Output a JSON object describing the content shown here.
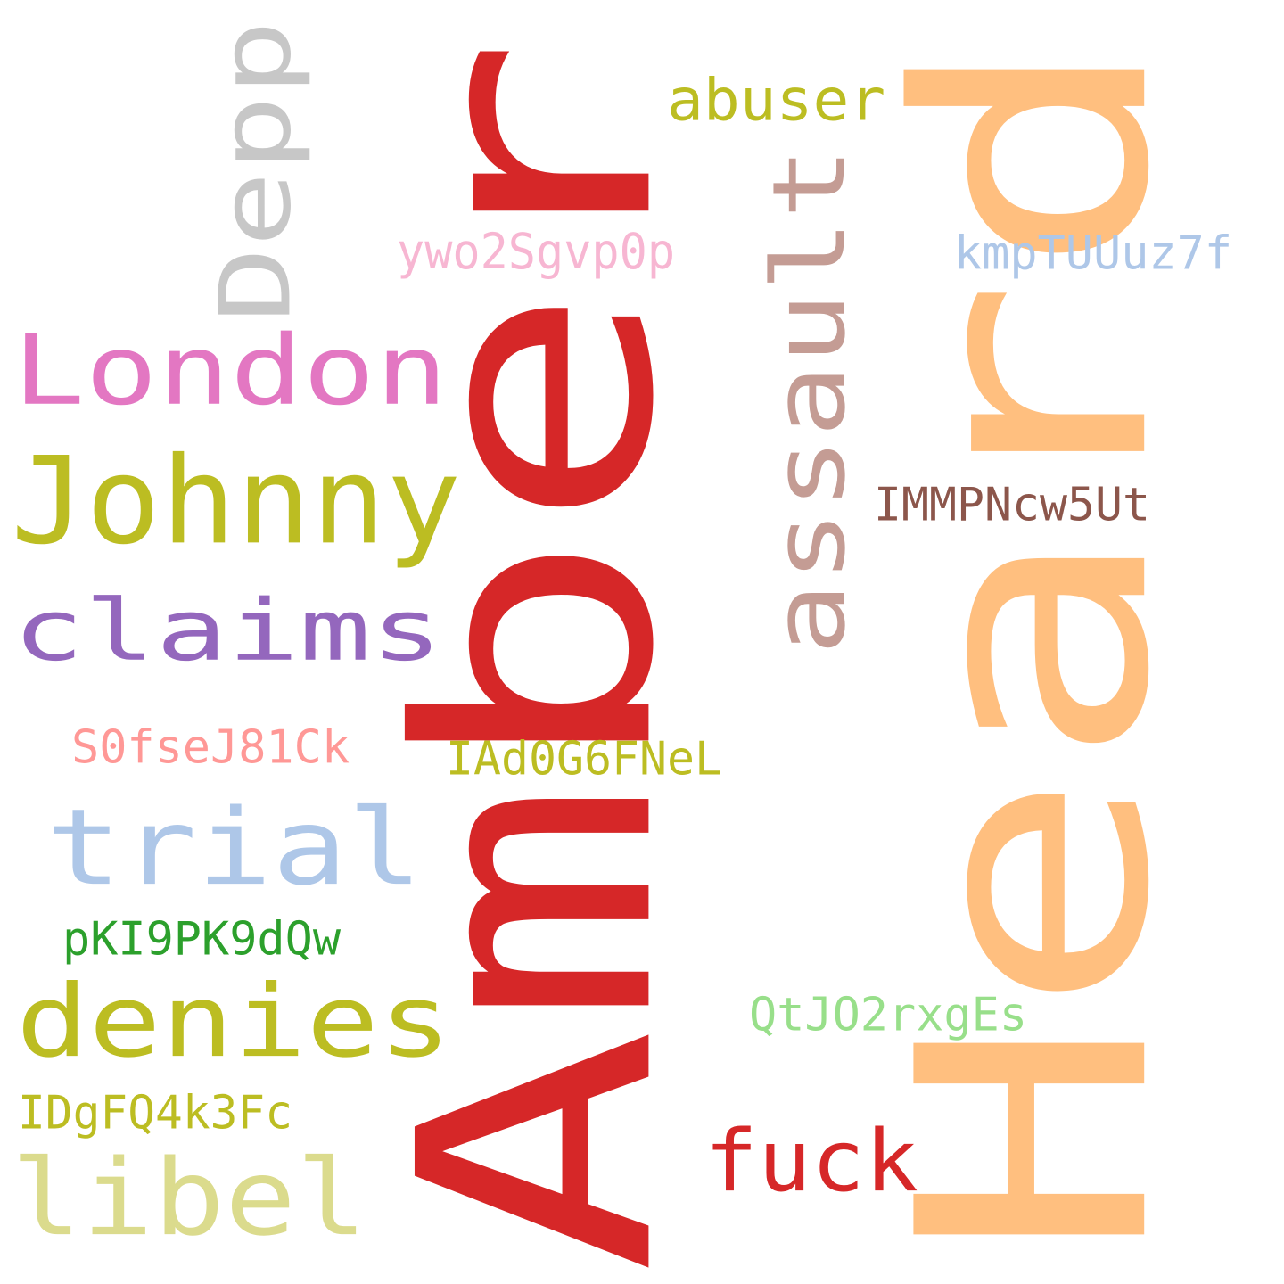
{
  "words": [
    {
      "id": "amber",
      "text": "Amber",
      "color": "#d62728",
      "orientation": "vertical"
    },
    {
      "id": "heard",
      "text": "Heard",
      "color": "#ffbf7f",
      "orientation": "vertical"
    },
    {
      "id": "depp",
      "text": "Depp",
      "color": "#c7c7c7",
      "orientation": "vertical"
    },
    {
      "id": "assault",
      "text": "assault",
      "color": "#c49c94",
      "orientation": "vertical"
    },
    {
      "id": "london",
      "text": "London",
      "color": "#e377c2",
      "orientation": "horizontal"
    },
    {
      "id": "johnny",
      "text": "Johnny",
      "color": "#bcbd22",
      "orientation": "horizontal"
    },
    {
      "id": "claims",
      "text": "claims",
      "color": "#9467bd",
      "orientation": "horizontal"
    },
    {
      "id": "trial",
      "text": "trial",
      "color": "#aec7e8",
      "orientation": "horizontal"
    },
    {
      "id": "denies",
      "text": "denies",
      "color": "#bcbd22",
      "orientation": "horizontal"
    },
    {
      "id": "libel",
      "text": "libel",
      "color": "#dbdb8d",
      "orientation": "horizontal"
    },
    {
      "id": "fuck",
      "text": "fuck",
      "color": "#d62728",
      "orientation": "horizontal"
    },
    {
      "id": "abuser",
      "text": "abuser",
      "color": "#bcbd22",
      "orientation": "horizontal"
    },
    {
      "id": "ywo2sgvp0p",
      "text": "ywo2Sgvp0p",
      "color": "#f7b6d2",
      "orientation": "horizontal"
    },
    {
      "id": "kmptuuuz7f",
      "text": "kmpTUUuz7f",
      "color": "#aec7e8",
      "orientation": "horizontal"
    },
    {
      "id": "immpncw5ut",
      "text": "IMMPNcw5Ut",
      "color": "#8c564b",
      "orientation": "horizontal"
    },
    {
      "id": "s0fsej81ck",
      "text": "S0fseJ81Ck",
      "color": "#ff9896",
      "orientation": "horizontal"
    },
    {
      "id": "iad0g6fnel",
      "text": "IAd0G6FNeL",
      "color": "#bcbd22",
      "orientation": "horizontal"
    },
    {
      "id": "pki9pk9dqw",
      "text": "pKI9PK9dQw",
      "color": "#2ca02c",
      "orientation": "horizontal"
    },
    {
      "id": "qtjo2rxges",
      "text": "QtJO2rxgEs",
      "color": "#98df8a",
      "orientation": "horizontal"
    },
    {
      "id": "idgfq4k3fc",
      "text": "IDgFQ4k3Fc",
      "color": "#bcbd22",
      "orientation": "horizontal"
    }
  ]
}
